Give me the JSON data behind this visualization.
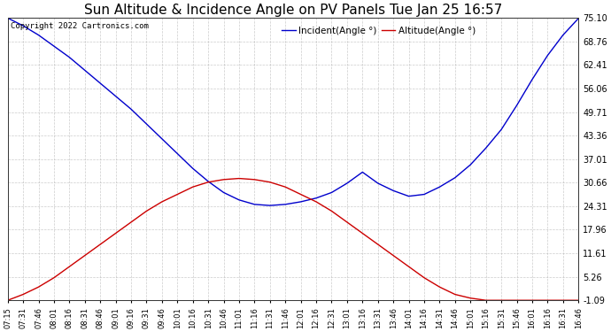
{
  "title": "Sun Altitude & Incidence Angle on PV Panels Tue Jan 25 16:57",
  "copyright": "Copyright 2022 Cartronics.com",
  "legend_incident": "Incident(Angle °)",
  "legend_altitude": "Altitude(Angle °)",
  "yticks": [
    75.1,
    68.76,
    62.41,
    56.06,
    49.71,
    43.36,
    37.01,
    30.66,
    24.31,
    17.96,
    11.61,
    5.26,
    -1.09
  ],
  "ymin": -1.09,
  "ymax": 75.1,
  "background_color": "#ffffff",
  "grid_color": "#aaaaaa",
  "incident_color": "#0000cc",
  "altitude_color": "#cc0000",
  "title_fontsize": 11,
  "x_times": [
    "07:15",
    "07:31",
    "07:46",
    "08:01",
    "08:16",
    "08:31",
    "08:46",
    "09:01",
    "09:16",
    "09:31",
    "09:46",
    "10:01",
    "10:16",
    "10:31",
    "10:46",
    "11:01",
    "11:16",
    "11:31",
    "11:46",
    "12:01",
    "12:16",
    "12:31",
    "13:01",
    "13:16",
    "13:31",
    "13:46",
    "14:01",
    "14:16",
    "14:31",
    "14:46",
    "15:01",
    "15:16",
    "15:31",
    "15:46",
    "16:01",
    "16:16",
    "16:31",
    "16:46"
  ],
  "incident_values": [
    75.1,
    73.0,
    70.5,
    67.5,
    64.5,
    61.0,
    57.5,
    54.0,
    50.5,
    46.5,
    42.5,
    38.5,
    34.5,
    31.0,
    28.0,
    26.0,
    24.8,
    24.5,
    24.8,
    25.5,
    26.5,
    28.0,
    30.5,
    33.5,
    30.5,
    28.5,
    27.0,
    27.5,
    29.5,
    32.0,
    35.5,
    40.0,
    45.0,
    51.5,
    58.5,
    65.0,
    70.5,
    75.0
  ],
  "altitude_values": [
    -1.09,
    0.5,
    2.5,
    5.0,
    8.0,
    11.0,
    14.0,
    17.0,
    20.0,
    23.0,
    25.5,
    27.5,
    29.5,
    30.8,
    31.5,
    31.8,
    31.5,
    30.8,
    29.5,
    27.5,
    25.5,
    23.0,
    20.0,
    17.0,
    14.0,
    11.0,
    8.0,
    5.0,
    2.5,
    0.5,
    -0.5,
    -1.09,
    -1.09,
    -1.09,
    -1.09,
    -1.09,
    -1.09,
    -1.09
  ]
}
